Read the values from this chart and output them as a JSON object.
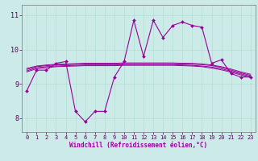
{
  "background_color": "#cceae8",
  "line_color": "#990099",
  "xlim": [
    -0.5,
    23.5
  ],
  "ylim": [
    7.6,
    11.3
  ],
  "yticks": [
    8,
    9,
    10,
    11
  ],
  "xticks": [
    0,
    1,
    2,
    3,
    4,
    5,
    6,
    7,
    8,
    9,
    10,
    11,
    12,
    13,
    14,
    15,
    16,
    17,
    18,
    19,
    20,
    21,
    22,
    23
  ],
  "xlabel": "Windchill (Refroidissement éolien,°C)",
  "series_main": [
    8.8,
    9.4,
    9.4,
    9.6,
    9.65,
    8.2,
    7.9,
    8.2,
    8.2,
    9.2,
    9.65,
    10.85,
    9.8,
    10.85,
    10.35,
    10.7,
    10.8,
    10.7,
    10.65,
    9.6,
    9.7,
    9.3,
    9.2,
    9.2
  ],
  "series_s1": [
    9.45,
    9.52,
    9.55,
    9.57,
    9.58,
    9.59,
    9.6,
    9.6,
    9.6,
    9.6,
    9.61,
    9.61,
    9.61,
    9.61,
    9.61,
    9.61,
    9.6,
    9.6,
    9.58,
    9.55,
    9.5,
    9.43,
    9.35,
    9.28
  ],
  "series_s2": [
    9.42,
    9.5,
    9.53,
    9.55,
    9.56,
    9.57,
    9.58,
    9.58,
    9.58,
    9.58,
    9.59,
    9.59,
    9.59,
    9.59,
    9.59,
    9.59,
    9.58,
    9.57,
    9.56,
    9.53,
    9.48,
    9.4,
    9.32,
    9.25
  ],
  "series_s3": [
    9.38,
    9.47,
    9.5,
    9.52,
    9.53,
    9.54,
    9.55,
    9.55,
    9.55,
    9.55,
    9.56,
    9.56,
    9.56,
    9.56,
    9.56,
    9.56,
    9.55,
    9.54,
    9.52,
    9.49,
    9.44,
    9.37,
    9.29,
    9.22
  ],
  "series_s4": [
    9.35,
    9.44,
    9.47,
    9.5,
    9.51,
    9.52,
    9.53,
    9.53,
    9.53,
    9.53,
    9.54,
    9.54,
    9.54,
    9.54,
    9.54,
    9.54,
    9.53,
    9.52,
    9.5,
    9.46,
    9.41,
    9.34,
    9.26,
    9.19
  ]
}
